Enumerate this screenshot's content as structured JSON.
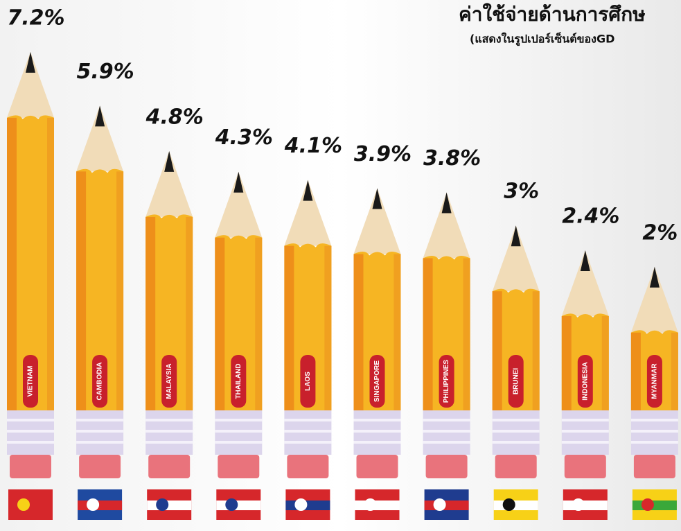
{
  "chart_data": {
    "type": "pencil-bar",
    "title": "ค่าใช้จ่ายด้านการศึกษ",
    "subtitle": "(แสดงในรูปเปอร์เซ็นต์ของGD",
    "categories": [
      "VIETNAM",
      "CAMBODIA",
      "MALAYSIA",
      "THAILAND",
      "LAOS",
      "SINGAPORE",
      "PHILIPPINES",
      "BRUNEI",
      "INDONESIA",
      "MYANMAR"
    ],
    "values": [
      7.2,
      5.9,
      4.8,
      4.3,
      4.1,
      3.9,
      3.8,
      3,
      2.4,
      2
    ],
    "value_labels": [
      "7.2%",
      "5.9%",
      "4.8%",
      "4.3%",
      "4.1%",
      "3.9%",
      "3.8%",
      "3%",
      "2.4%",
      "2%"
    ],
    "color": "#f6b523"
  }
}
